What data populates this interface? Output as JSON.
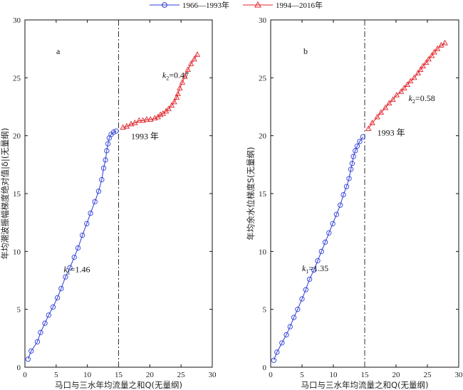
{
  "legend": {
    "items": [
      {
        "label": "1966—1993年",
        "color": "#2e3dd6",
        "marker": "circle"
      },
      {
        "label": "1994—2016年",
        "color": "#e0242a",
        "marker": "triangle"
      }
    ]
  },
  "chart_data": [
    {
      "type": "line",
      "panel_label": "a",
      "xlabel": "马口与三水年均流量之和Q(无量纲)",
      "ylabel": "年均潮波振幅梯度绝对值|δ|(无量纲)",
      "xlim": [
        0,
        30
      ],
      "ylim": [
        0,
        30
      ],
      "xticks": [
        "0",
        "5",
        "10",
        "15",
        "20",
        "25",
        "30"
      ],
      "yticks": [
        "0",
        "5",
        "10",
        "15",
        "20",
        "25",
        "30"
      ],
      "divider_x": 15,
      "annotations": [
        {
          "text": "k1=1.46",
          "base": "k",
          "sub": "1",
          "value": "=1.46",
          "x": 6.2,
          "y": 8.2
        },
        {
          "text": "k2=0.47",
          "base": "k",
          "sub": "2",
          "value": "=0.47",
          "x": 22.0,
          "y": 25.0
        },
        {
          "text": "1993 年",
          "x": 17.0,
          "y": 19.7
        }
      ],
      "series": [
        {
          "name": "1966—1993年",
          "color": "#2e3dd6",
          "marker": "circle",
          "x": [
            0.5,
            1.0,
            2.0,
            2.5,
            3.2,
            3.8,
            4.5,
            5.2,
            5.8,
            6.5,
            7.2,
            7.9,
            8.5,
            9.2,
            9.9,
            10.5,
            11.2,
            11.8,
            12.3,
            12.6,
            12.9,
            13.1,
            13.3,
            13.5,
            13.8,
            14.2,
            14.6
          ],
          "y": [
            0.7,
            1.4,
            2.2,
            3.0,
            3.8,
            4.5,
            5.2,
            6.0,
            6.8,
            7.8,
            8.6,
            9.5,
            10.3,
            11.4,
            12.4,
            13.3,
            14.3,
            15.2,
            16.2,
            17.2,
            17.9,
            18.7,
            19.3,
            19.8,
            20.1,
            20.3,
            20.4
          ]
        },
        {
          "name": "1994—2016年",
          "color": "#e0242a",
          "marker": "triangle",
          "x": [
            15.7,
            16.3,
            17.0,
            17.6,
            18.3,
            18.9,
            19.5,
            20.1,
            20.8,
            21.3,
            21.7,
            22.1,
            22.6,
            23.0,
            23.5,
            23.9,
            24.3,
            24.5,
            24.8,
            25.2,
            25.6,
            26.1,
            26.6,
            27.1,
            27.6
          ],
          "y": [
            20.7,
            20.8,
            21.0,
            21.1,
            21.3,
            21.3,
            21.4,
            21.4,
            21.5,
            21.6,
            21.8,
            21.9,
            22.1,
            22.3,
            22.6,
            22.9,
            23.3,
            23.6,
            24.1,
            24.6,
            25.1,
            25.7,
            26.2,
            26.6,
            27.0
          ]
        }
      ]
    },
    {
      "type": "line",
      "panel_label": "b",
      "xlabel": "马口与三水年均流量之和Q(无量纲)",
      "ylabel": "年均余水位梯度S(无量纲)",
      "xlim": [
        0,
        30
      ],
      "ylim": [
        0,
        30
      ],
      "xticks": [
        "0",
        "5",
        "10",
        "15",
        "20",
        "25",
        "30"
      ],
      "yticks": [
        "0",
        "5",
        "10",
        "15",
        "20",
        "25",
        "30"
      ],
      "divider_x": 15,
      "annotations": [
        {
          "text": "k1=1.35",
          "base": "k",
          "sub": "1",
          "value": "=1.35",
          "x": 5.0,
          "y": 8.3
        },
        {
          "text": "k2=0.58",
          "base": "k",
          "sub": "2",
          "value": "=0.58",
          "x": 22.0,
          "y": 23.0
        },
        {
          "text": "1993 年",
          "x": 17.0,
          "y": 20.0
        }
      ],
      "series": [
        {
          "name": "1966—1993年",
          "color": "#2e3dd6",
          "marker": "circle",
          "x": [
            0.5,
            1.0,
            1.8,
            2.5,
            3.1,
            3.7,
            4.3,
            5.0,
            5.6,
            6.2,
            6.9,
            7.5,
            8.1,
            8.7,
            9.3,
            9.9,
            10.5,
            11.1,
            11.6,
            12.1,
            12.5,
            12.8,
            13.0,
            13.2,
            13.5,
            13.8,
            14.2,
            14.7
          ],
          "y": [
            0.6,
            1.3,
            2.1,
            2.8,
            3.5,
            4.3,
            5.0,
            5.9,
            6.7,
            7.6,
            8.4,
            9.2,
            10.0,
            10.8,
            11.6,
            12.4,
            13.2,
            14.0,
            14.9,
            15.6,
            16.3,
            17.1,
            17.6,
            18.2,
            18.7,
            19.1,
            19.5,
            19.9
          ]
        },
        {
          "name": "1994—2016年",
          "color": "#e0242a",
          "marker": "triangle",
          "x": [
            15.6,
            16.2,
            17.0,
            17.6,
            18.3,
            18.9,
            19.5,
            20.1,
            20.8,
            21.3,
            21.8,
            22.3,
            22.9,
            23.5,
            23.9,
            24.3,
            24.8,
            25.2,
            25.7,
            26.1,
            26.6,
            27.2,
            27.8
          ],
          "y": [
            20.6,
            21.1,
            21.6,
            22.0,
            22.4,
            22.8,
            23.1,
            23.5,
            23.8,
            24.1,
            24.4,
            24.7,
            25.0,
            25.4,
            25.7,
            26.0,
            26.3,
            26.6,
            26.9,
            27.2,
            27.5,
            27.8,
            28.0
          ]
        }
      ]
    }
  ]
}
